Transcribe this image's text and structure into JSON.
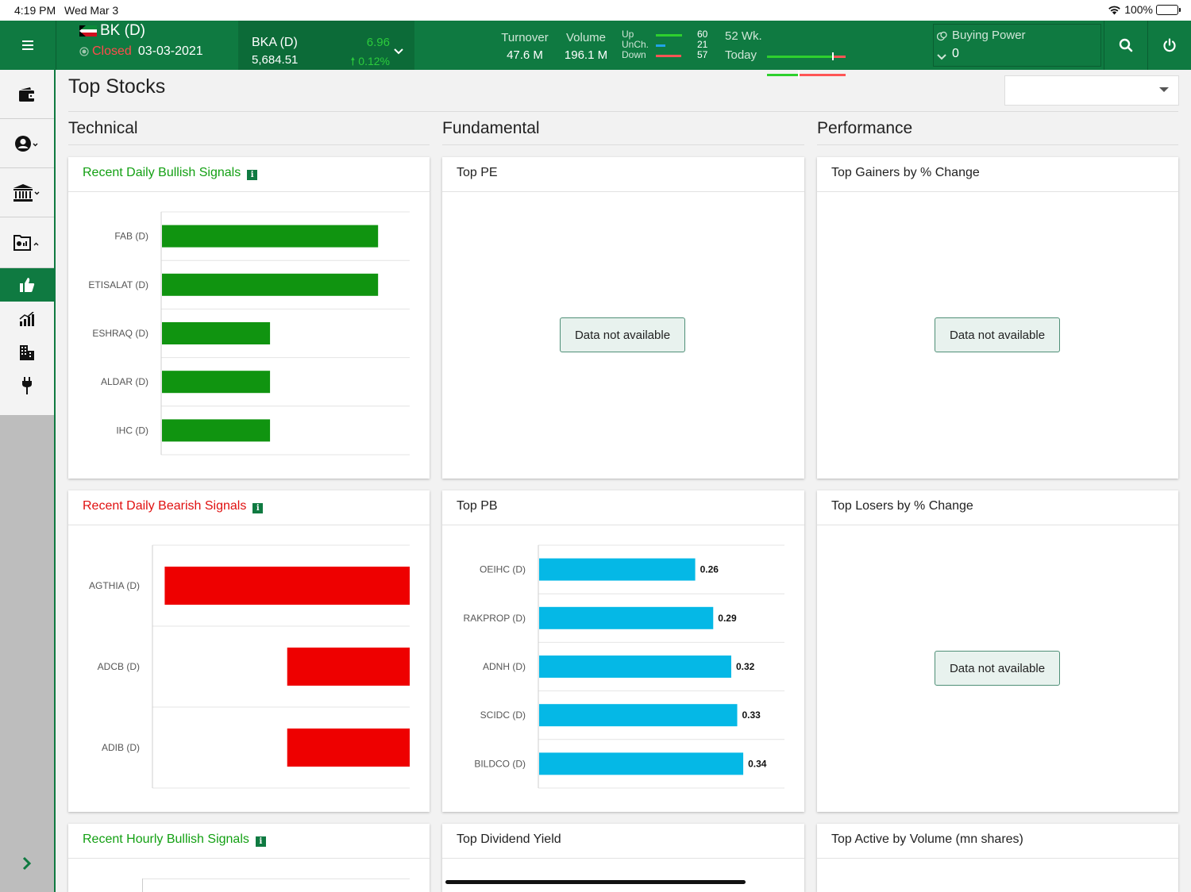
{
  "status_bar": {
    "time": "4:19 PM",
    "date": "Wed Mar 3",
    "battery": "100%"
  },
  "header": {
    "exchange": "BK (D)",
    "market_status": "Closed",
    "market_date": "03-03-2021",
    "index": {
      "name": "BKA (D)",
      "value": "5,684.51",
      "change": "6.96",
      "change_pct": "0.12%"
    },
    "turnover": {
      "label": "Turnover",
      "value": "47.6 M"
    },
    "volume": {
      "label": "Volume",
      "value": "196.1 M"
    },
    "breadth": {
      "up_label": "Up",
      "unch_label": "UnCh.",
      "down_label": "Down",
      "up": "60",
      "unch": "21",
      "down": "57"
    },
    "range": {
      "wk52_label": "52 Wk.",
      "today_label": "Today",
      "wk52_position": 0.83,
      "today_position": 0.4
    },
    "buying_power": {
      "label": "Buying Power",
      "value": "0"
    }
  },
  "sidebar": {
    "items": [
      "wallet-icon",
      "user-icon",
      "bank-icon",
      "folder-chart-icon",
      "thumbs-up-icon",
      "bar-chart-icon",
      "building-icon",
      "plug-icon"
    ],
    "active": "thumbs-up-icon"
  },
  "page": {
    "title": "Top Stocks",
    "dropdown_value": ""
  },
  "columns": {
    "technical": "Technical",
    "fundamental": "Fundamental",
    "performance": "Performance"
  },
  "cards": {
    "bullish_daily": {
      "title": "Recent Daily Bullish Signals"
    },
    "top_pe": {
      "title": "Top PE",
      "empty": "Data not available"
    },
    "top_gainers": {
      "title": "Top Gainers by % Change",
      "empty": "Data not available"
    },
    "bearish_daily": {
      "title": "Recent Daily Bearish Signals"
    },
    "top_pb": {
      "title": "Top PB"
    },
    "top_losers": {
      "title": "Top Losers by % Change",
      "empty": "Data not available"
    },
    "bullish_hourly": {
      "title": "Recent Hourly Bullish Signals"
    },
    "top_dividend": {
      "title": "Top Dividend Yield"
    },
    "top_active": {
      "title": "Top Active by Volume (mn shares)"
    }
  },
  "colors": {
    "brand": "#0f7a41",
    "bullish": "#109410",
    "bearish": "#ee0000",
    "pb_bar": "#05b8e6"
  },
  "chart_data": [
    {
      "id": "bullish",
      "type": "bar",
      "orientation": "horizontal",
      "categories": [
        "FAB (D)",
        "ETISALAT (D)",
        "ESHRAQ (D)",
        "ALDAR (D)",
        "IHC (D)"
      ],
      "values": [
        2,
        2,
        1,
        1,
        1
      ],
      "xlim": [
        0,
        2.3
      ]
    },
    {
      "id": "bearish",
      "type": "bar",
      "orientation": "horizontal",
      "direction": "right-to-left",
      "categories": [
        "AGTHIA (D)",
        "ADCB (D)",
        "ADIB (D)"
      ],
      "values": [
        2,
        1,
        1
      ],
      "xlim": [
        0,
        2.1
      ]
    },
    {
      "id": "pb",
      "type": "bar",
      "orientation": "horizontal",
      "categories": [
        "OEIHC (D)",
        "RAKPROP (D)",
        "ADNH (D)",
        "SCIDC (D)",
        "BILDCO (D)"
      ],
      "values": [
        0.26,
        0.29,
        0.32,
        0.33,
        0.34
      ],
      "labels": [
        "0.26",
        "0.29",
        "0.32",
        "0.33",
        "0.34"
      ],
      "xlim": [
        0,
        0.41
      ]
    }
  ]
}
